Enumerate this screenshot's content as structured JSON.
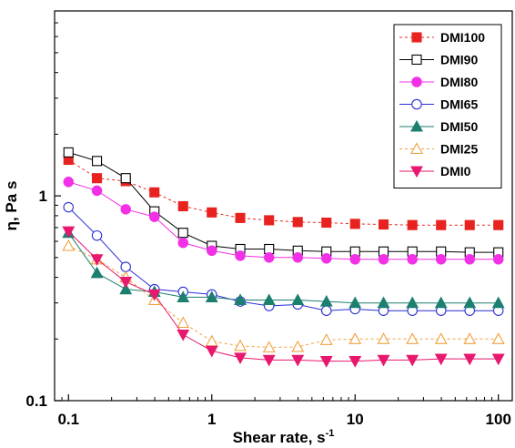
{
  "chart_data": {
    "type": "line",
    "xlabel": "Shear rate, s",
    "xlabel_superscript": "-1",
    "ylabel": "η, Pa s",
    "x_scale": "log",
    "y_scale": "log",
    "xlim": [
      0.08,
      125
    ],
    "ylim": [
      0.1,
      8
    ],
    "x_ticks": [
      0.1,
      1,
      10,
      100
    ],
    "x_tick_labels": [
      "0.1",
      "1",
      "10",
      "100"
    ],
    "y_ticks": [
      0.1,
      1
    ],
    "y_tick_labels": [
      "0.1",
      "1"
    ],
    "grid": false,
    "legend_position": "top-right",
    "series": [
      {
        "name": "DMI100",
        "color": "#e8231f",
        "marker": "square",
        "filled": true,
        "dash": "3,3",
        "x": [
          0.1,
          0.158,
          0.251,
          0.398,
          0.631,
          1,
          1.58,
          2.51,
          3.98,
          6.31,
          10,
          15.8,
          25.1,
          39.8,
          63.1,
          100
        ],
        "y": [
          1.5,
          1.22,
          1.18,
          1.04,
          0.89,
          0.83,
          0.78,
          0.76,
          0.745,
          0.74,
          0.73,
          0.725,
          0.72,
          0.72,
          0.72,
          0.72
        ]
      },
      {
        "name": "DMI90",
        "color": "#000000",
        "marker": "square",
        "filled": false,
        "dash": "",
        "x": [
          0.1,
          0.158,
          0.251,
          0.398,
          0.631,
          1,
          1.58,
          2.51,
          3.98,
          6.31,
          10,
          15.8,
          25.1,
          39.8,
          63.1,
          100
        ],
        "y": [
          1.63,
          1.48,
          1.22,
          0.84,
          0.66,
          0.57,
          0.55,
          0.55,
          0.54,
          0.535,
          0.535,
          0.535,
          0.535,
          0.535,
          0.53,
          0.53
        ]
      },
      {
        "name": "DMI80",
        "color": "#f230e6",
        "marker": "circle",
        "filled": true,
        "dash": "",
        "x": [
          0.1,
          0.158,
          0.251,
          0.398,
          0.631,
          1,
          1.58,
          2.51,
          3.98,
          6.31,
          10,
          15.8,
          25.1,
          39.8,
          63.1,
          100
        ],
        "y": [
          1.17,
          1.06,
          0.86,
          0.79,
          0.59,
          0.54,
          0.51,
          0.5,
          0.5,
          0.495,
          0.49,
          0.49,
          0.49,
          0.49,
          0.49,
          0.49
        ]
      },
      {
        "name": "DMI65",
        "color": "#2a2fd6",
        "marker": "circle",
        "filled": false,
        "dash": "",
        "x": [
          0.1,
          0.158,
          0.251,
          0.398,
          0.631,
          1,
          1.58,
          2.51,
          3.98,
          6.31,
          10,
          15.8,
          25.1,
          39.8,
          63.1,
          100
        ],
        "y": [
          0.88,
          0.64,
          0.45,
          0.35,
          0.34,
          0.33,
          0.305,
          0.29,
          0.295,
          0.275,
          0.28,
          0.275,
          0.275,
          0.275,
          0.275,
          0.275
        ]
      },
      {
        "name": "DMI50",
        "color": "#1c7f6f",
        "marker": "triangle-up",
        "filled": true,
        "dash": "",
        "x": [
          0.1,
          0.158,
          0.251,
          0.398,
          0.631,
          1,
          1.58,
          2.51,
          3.98,
          6.31,
          10,
          15.8,
          25.1,
          39.8,
          63.1,
          100
        ],
        "y": [
          0.66,
          0.42,
          0.35,
          0.34,
          0.32,
          0.32,
          0.31,
          0.31,
          0.31,
          0.305,
          0.3,
          0.3,
          0.3,
          0.3,
          0.3,
          0.3
        ]
      },
      {
        "name": "DMI25",
        "color": "#f2a03c",
        "marker": "triangle-up",
        "filled": false,
        "dash": "3,3",
        "x": [
          0.1,
          0.158,
          0.251,
          0.398,
          0.631,
          1,
          1.58,
          2.51,
          3.98,
          6.31,
          10,
          15.8,
          25.1,
          39.8,
          63.1,
          100
        ],
        "y": [
          0.57,
          0.49,
          0.4,
          0.31,
          0.24,
          0.195,
          0.185,
          0.182,
          0.183,
          0.198,
          0.2,
          0.2,
          0.2,
          0.2,
          0.2,
          0.2
        ]
      },
      {
        "name": "DMI0",
        "color": "#e8186e",
        "marker": "triangle-down",
        "filled": true,
        "dash": "",
        "x": [
          0.1,
          0.158,
          0.251,
          0.398,
          0.631,
          1,
          1.58,
          2.51,
          3.98,
          6.31,
          10,
          15.8,
          25.1,
          39.8,
          63.1,
          100
        ],
        "y": [
          0.67,
          0.49,
          0.38,
          0.33,
          0.21,
          0.175,
          0.162,
          0.158,
          0.158,
          0.156,
          0.156,
          0.158,
          0.158,
          0.16,
          0.16,
          0.16
        ]
      }
    ]
  }
}
